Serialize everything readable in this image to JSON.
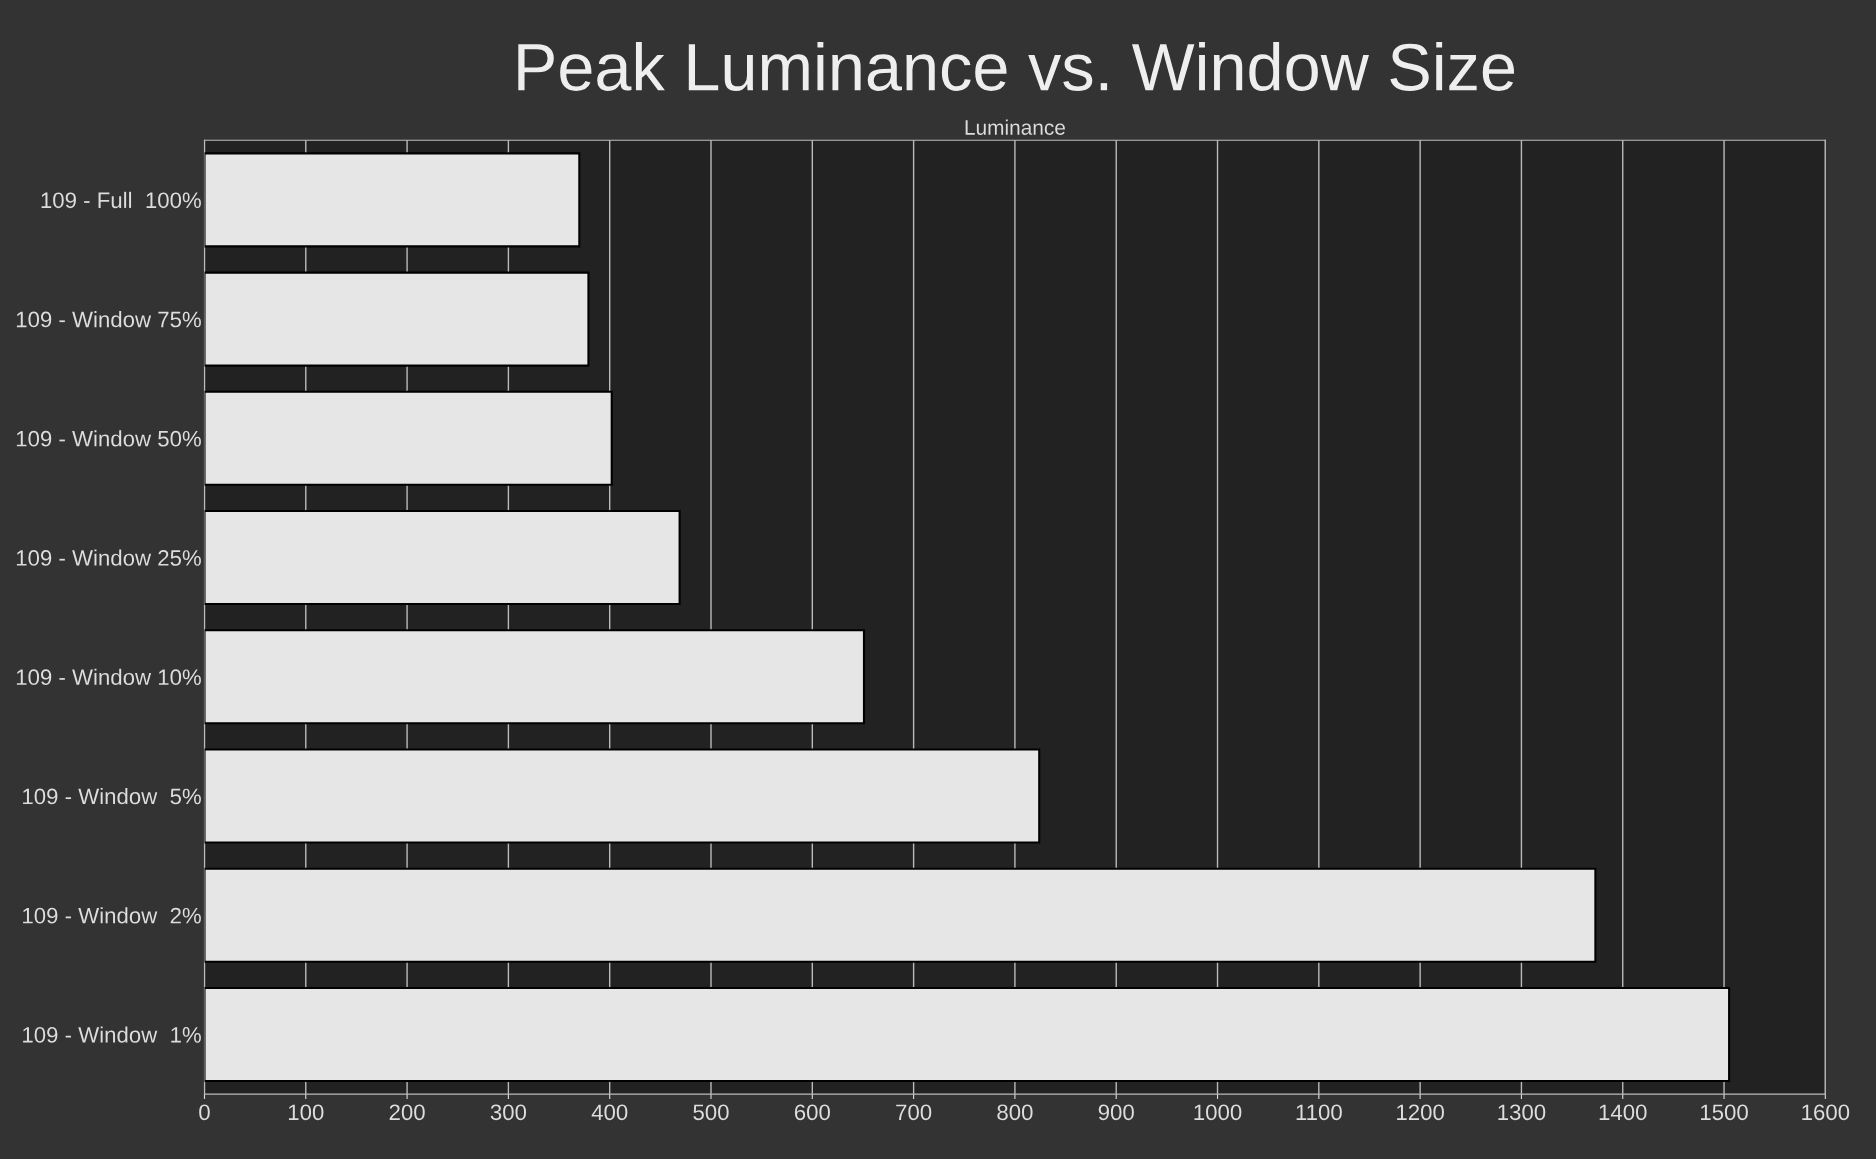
{
  "chart_data": {
    "type": "bar",
    "orientation": "horizontal",
    "title": "Peak Luminance vs. Window Size",
    "xlabel": "Luminance",
    "categories": [
      "109 - Full  100%",
      "109 - Window 75%",
      "109 - Window 50%",
      "109 - Window 25%",
      "109 - Window 10%",
      "109 - Window  5%",
      "109 - Window  2%",
      "109 - Window  1%"
    ],
    "values": [
      370,
      379,
      402,
      469,
      651,
      824,
      1373,
      1505
    ],
    "color": "#e6e6e6",
    "xlim": [
      0,
      1600
    ],
    "xticks": [
      0,
      100,
      200,
      300,
      400,
      500,
      600,
      700,
      800,
      900,
      1000,
      1100,
      1200,
      1300,
      1400,
      1500,
      1600
    ],
    "grid": "x",
    "legend": false
  }
}
